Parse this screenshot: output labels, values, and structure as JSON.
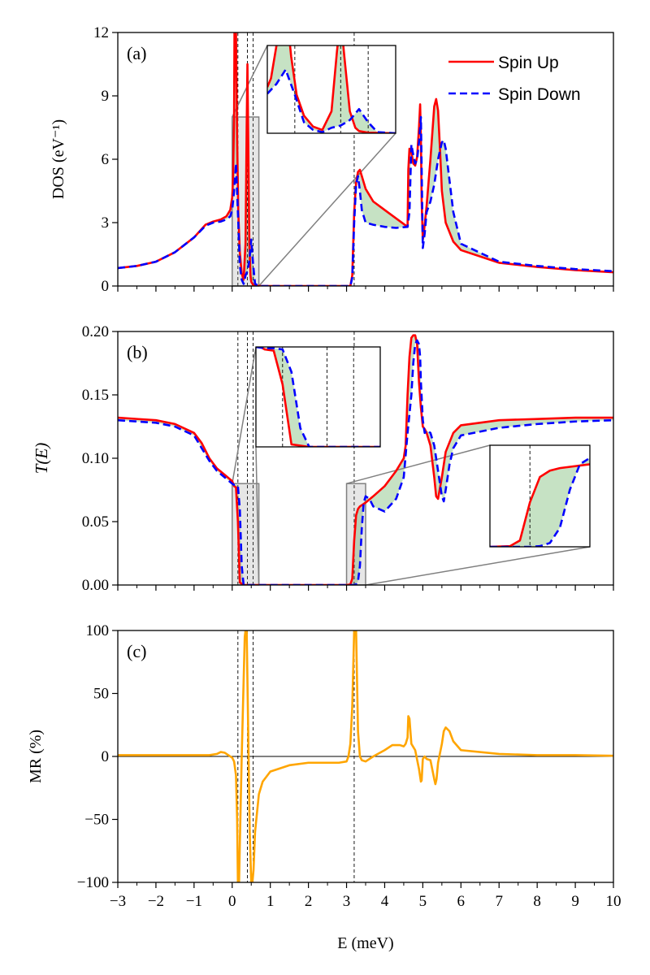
{
  "figure": {
    "xlabel": "E (meV)",
    "x_tick_labels": [
      "−3",
      "−2",
      "−1",
      "0",
      "1",
      "2",
      "3",
      "4",
      "5",
      "6",
      "7",
      "8",
      "9",
      "10"
    ],
    "xlim": [
      -3,
      10
    ],
    "vlines": [
      0.15,
      0.4,
      0.55,
      3.2
    ]
  },
  "colors": {
    "spin_up": "#ff0000",
    "spin_down": "#0000ff",
    "mr": "#ffa500",
    "fill": "#c6e2c4",
    "zoom": "#808080"
  },
  "chart_data": [
    {
      "type": "line",
      "panel_label": "(a)",
      "ylabel": "DOS (eV⁻¹)",
      "ylim": [
        0,
        12
      ],
      "y_ticks": [
        0,
        3,
        6,
        9,
        12
      ],
      "y_tick_labels": [
        "0",
        "3",
        "6",
        "9",
        "12"
      ],
      "legend": {
        "placement": "top-right",
        "entries": [
          "Spin Up",
          "Spin Down"
        ]
      },
      "series": [
        {
          "name": "Spin Up",
          "x": [
            -3,
            -2.5,
            -2,
            -1.5,
            -1,
            -0.7,
            -0.5,
            -0.3,
            -0.15,
            -0.05,
            0,
            0.02,
            0.05,
            0.06,
            0.08,
            0.1,
            0.13,
            0.16,
            0.2,
            0.25,
            0.3,
            0.35,
            0.38,
            0.4,
            0.42,
            0.45,
            0.48,
            0.5,
            0.55,
            0.7,
            1,
            2,
            3,
            3.05,
            3.1,
            3.15,
            3.2,
            3.25,
            3.3,
            3.35,
            3.4,
            3.5,
            3.7,
            4,
            4.3,
            4.6,
            4.62,
            4.65,
            4.7,
            4.75,
            4.8,
            4.85,
            4.9,
            4.93,
            4.95,
            4.97,
            5,
            5.02,
            5.1,
            5.2,
            5.3,
            5.35,
            5.4,
            5.45,
            5.5,
            5.6,
            5.8,
            6,
            7,
            8,
            9,
            10
          ],
          "values": [
            0.85,
            0.95,
            1.15,
            1.6,
            2.3,
            2.9,
            3.05,
            3.15,
            3.3,
            3.6,
            4.2,
            5,
            8,
            12,
            12,
            12,
            7,
            3.5,
            1.6,
            0.6,
            0.3,
            2,
            7.5,
            10.5,
            7,
            2,
            0.5,
            0.2,
            0.05,
            0,
            0,
            0,
            0,
            0,
            0,
            0.5,
            3.5,
            4.9,
            5.4,
            5.5,
            5.2,
            4.6,
            4,
            3.6,
            3.2,
            2.8,
            5.5,
            6.5,
            6.3,
            5.8,
            5.7,
            6.1,
            7.5,
            8.6,
            7,
            4,
            2.2,
            2.4,
            3.8,
            6,
            8.5,
            8.85,
            8.3,
            6.5,
            4.5,
            3,
            2.1,
            1.7,
            1.1,
            0.9,
            0.75,
            0.65
          ]
        },
        {
          "name": "Spin Down",
          "x": [
            -3,
            -2.5,
            -2,
            -1.5,
            -1,
            -0.7,
            -0.5,
            -0.3,
            -0.15,
            -0.05,
            0,
            0.05,
            0.1,
            0.15,
            0.2,
            0.25,
            0.3,
            0.35,
            0.4,
            0.45,
            0.5,
            0.55,
            0.6,
            0.7,
            1,
            2,
            3,
            3.1,
            3.15,
            3.2,
            3.25,
            3.3,
            3.35,
            3.4,
            3.5,
            3.7,
            4,
            4.3,
            4.6,
            4.65,
            4.7,
            4.75,
            4.8,
            4.85,
            4.9,
            4.95,
            5,
            5.05,
            5.1,
            5.2,
            5.3,
            5.4,
            5.5,
            5.55,
            5.6,
            5.7,
            5.8,
            6,
            7,
            8,
            9,
            10
          ],
          "values": [
            0.85,
            0.95,
            1.15,
            1.6,
            2.3,
            2.85,
            3,
            3.05,
            3.15,
            3.3,
            3.6,
            4.5,
            5.8,
            3.5,
            1,
            0.3,
            0.1,
            0.5,
            0.7,
            1.2,
            2.2,
            1,
            0.1,
            0,
            0,
            0,
            0,
            0,
            0.4,
            3,
            4.8,
            5.2,
            4.5,
            3.6,
            3,
            2.9,
            2.8,
            2.75,
            2.8,
            3.5,
            6.7,
            6.2,
            5.8,
            6,
            6.8,
            8,
            1.8,
            2.5,
            3.5,
            4,
            4.8,
            6,
            6.8,
            6.9,
            6.5,
            5,
            3.5,
            2,
            1.15,
            0.95,
            0.8,
            0.7
          ]
        }
      ]
    },
    {
      "type": "line",
      "panel_label": "(b)",
      "ylabel": "T(E)",
      "ylim": [
        0,
        0.2
      ],
      "y_ticks": [
        0,
        0.05,
        0.1,
        0.15,
        0.2
      ],
      "y_tick_labels": [
        "0.00",
        "0.05",
        "0.10",
        "0.15",
        "0.20"
      ],
      "series": [
        {
          "name": "Spin Up",
          "x": [
            -3,
            -2.5,
            -2,
            -1.5,
            -1,
            -0.8,
            -0.6,
            -0.4,
            -0.2,
            0,
            0.05,
            0.1,
            0.15,
            0.2,
            0.3,
            0.5,
            1,
            2,
            3,
            3.1,
            3.15,
            3.2,
            3.25,
            3.3,
            3.35,
            3.5,
            3.7,
            4,
            4.3,
            4.5,
            4.55,
            4.6,
            4.65,
            4.7,
            4.75,
            4.8,
            4.85,
            4.9,
            4.95,
            5,
            5.05,
            5.1,
            5.2,
            5.3,
            5.35,
            5.4,
            5.5,
            5.6,
            5.8,
            6,
            7,
            8,
            9,
            10
          ],
          "values": [
            0.132,
            0.131,
            0.13,
            0.127,
            0.12,
            0.112,
            0.1,
            0.092,
            0.087,
            0.082,
            0.078,
            0.077,
            0.05,
            0.002,
            0,
            0,
            0,
            0,
            0,
            0.0005,
            0.005,
            0.035,
            0.055,
            0.06,
            0.062,
            0.065,
            0.07,
            0.078,
            0.09,
            0.1,
            0.11,
            0.15,
            0.18,
            0.195,
            0.197,
            0.197,
            0.19,
            0.16,
            0.14,
            0.125,
            0.123,
            0.12,
            0.11,
            0.085,
            0.07,
            0.068,
            0.085,
            0.105,
            0.12,
            0.126,
            0.13,
            0.131,
            0.132,
            0.132
          ]
        },
        {
          "name": "Spin Down",
          "x": [
            -3,
            -2.5,
            -2,
            -1.5,
            -1,
            -0.8,
            -0.6,
            -0.4,
            -0.2,
            0,
            0.05,
            0.1,
            0.15,
            0.2,
            0.25,
            0.3,
            0.5,
            1,
            2,
            3,
            3.2,
            3.25,
            3.3,
            3.35,
            3.4,
            3.45,
            3.5,
            3.6,
            3.7,
            4,
            4.3,
            4.5,
            4.6,
            4.7,
            4.75,
            4.8,
            4.85,
            4.9,
            4.93,
            4.95,
            5,
            5.05,
            5.1,
            5.2,
            5.3,
            5.4,
            5.5,
            5.55,
            5.6,
            5.7,
            5.8,
            6,
            7,
            8,
            9,
            10
          ],
          "values": [
            0.13,
            0.129,
            0.128,
            0.125,
            0.118,
            0.108,
            0.098,
            0.09,
            0.085,
            0.08,
            0.079,
            0.079,
            0.078,
            0.06,
            0.015,
            0,
            0,
            0,
            0,
            0,
            0,
            0.0005,
            0.003,
            0.015,
            0.045,
            0.065,
            0.07,
            0.068,
            0.062,
            0.058,
            0.068,
            0.085,
            0.12,
            0.15,
            0.175,
            0.19,
            0.193,
            0.19,
            0.18,
            0.16,
            0.13,
            0.12,
            0.122,
            0.12,
            0.11,
            0.09,
            0.07,
            0.066,
            0.075,
            0.095,
            0.108,
            0.118,
            0.124,
            0.127,
            0.129,
            0.13
          ]
        }
      ]
    },
    {
      "type": "line",
      "panel_label": "(c)",
      "ylabel": "MR (%)",
      "ylim": [
        -100,
        100
      ],
      "y_ticks": [
        -100,
        -50,
        0,
        50,
        100
      ],
      "y_tick_labels": [
        "−100",
        "−50",
        "0",
        "50",
        "100"
      ],
      "series": [
        {
          "name": "MR",
          "x": [
            -3,
            -2,
            -1,
            -0.6,
            -0.4,
            -0.3,
            -0.2,
            -0.1,
            0,
            0.05,
            0.1,
            0.13,
            0.15,
            0.18,
            0.2,
            0.25,
            0.3,
            0.33,
            0.35,
            0.38,
            0.4,
            0.43,
            0.46,
            0.5,
            0.53,
            0.56,
            0.6,
            0.7,
            0.8,
            1,
            1.5,
            2,
            2.5,
            2.8,
            3,
            3.05,
            3.1,
            3.15,
            3.2,
            3.25,
            3.3,
            3.35,
            3.4,
            3.5,
            3.7,
            4,
            4.2,
            4.4,
            4.5,
            4.55,
            4.6,
            4.62,
            4.65,
            4.7,
            4.8,
            4.9,
            4.95,
            4.97,
            5,
            5.05,
            5.1,
            5.2,
            5.3,
            5.33,
            5.36,
            5.4,
            5.5,
            5.55,
            5.6,
            5.7,
            5.8,
            6,
            7,
            8,
            9,
            10
          ],
          "values": [
            1,
            1,
            1,
            1,
            2,
            3.5,
            3,
            1,
            -1,
            -4,
            -15,
            -50,
            -100,
            -100,
            -70,
            0,
            60,
            95,
            100,
            100,
            60,
            0,
            -60,
            -100,
            -100,
            -90,
            -60,
            -30,
            -20,
            -12,
            -7,
            -5,
            -5,
            -5,
            -4,
            0,
            10,
            40,
            100,
            100,
            20,
            0,
            -3,
            -4,
            0,
            5,
            9,
            9,
            8,
            10,
            15,
            32,
            30,
            10,
            5,
            -10,
            -20,
            -19,
            -2,
            0,
            -2,
            -3,
            -18,
            -22,
            -18,
            -5,
            10,
            20,
            23,
            20,
            12,
            5,
            2,
            1,
            1,
            0.5
          ]
        }
      ]
    }
  ],
  "insets": {
    "a": {
      "xlim": [
        0,
        0.7
      ],
      "ylim": [
        0,
        8
      ],
      "vlines": [
        0.15,
        0.4,
        0.55
      ],
      "source": "panel a zoom"
    },
    "b1": {
      "xlim": [
        0,
        0.7
      ],
      "ylim": [
        0,
        0.08
      ],
      "vlines": [
        0.15,
        0.4,
        0.55
      ],
      "source": "panel b zoom left"
    },
    "b2": {
      "xlim": [
        3.0,
        3.5
      ],
      "ylim": [
        0,
        0.08
      ],
      "vlines": [
        3.2
      ],
      "source": "panel b zoom right"
    }
  }
}
